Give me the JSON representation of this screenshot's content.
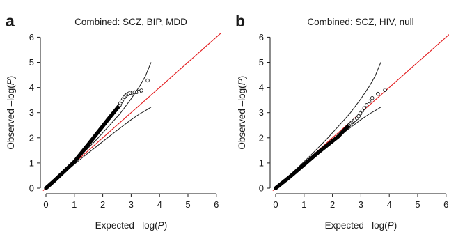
{
  "figure": {
    "panels": [
      {
        "letter": "a",
        "title": "Combined: SCZ, BIP, MDD"
      },
      {
        "letter": "b",
        "title": "Combined: SCZ, HIV, null"
      }
    ]
  },
  "chart_data": [
    {
      "type": "scatter",
      "panel": "a",
      "title": "Combined: SCZ, BIP, MDD",
      "xlabel": "Expected –log(P)",
      "ylabel": "Observed –log(P)",
      "xlim": [
        0,
        6
      ],
      "ylim": [
        0,
        6
      ],
      "xticks": [
        0,
        1,
        2,
        3,
        4,
        5,
        6
      ],
      "yticks": [
        0,
        1,
        2,
        3,
        4,
        5,
        6
      ],
      "colors": {
        "reference_line": "#e31a1c",
        "points": "#000000",
        "envelope": "#1a1a1a"
      },
      "reference_line": {
        "from": [
          0,
          0
        ],
        "to": [
          6.2,
          6.2
        ]
      },
      "confidence_band": {
        "upper": [
          [
            0.3,
            0.31
          ],
          [
            0.8,
            0.84
          ],
          [
            1.3,
            1.38
          ],
          [
            1.8,
            1.95
          ],
          [
            2.2,
            2.45
          ],
          [
            2.6,
            2.95
          ],
          [
            3.0,
            3.55
          ],
          [
            3.3,
            4.05
          ],
          [
            3.5,
            4.45
          ],
          [
            3.7,
            5.0
          ]
        ],
        "lower": [
          [
            0.3,
            0.29
          ],
          [
            0.8,
            0.76
          ],
          [
            1.3,
            1.23
          ],
          [
            1.8,
            1.67
          ],
          [
            2.2,
            2.03
          ],
          [
            2.6,
            2.38
          ],
          [
            3.0,
            2.72
          ],
          [
            3.3,
            2.95
          ],
          [
            3.5,
            3.08
          ],
          [
            3.7,
            3.22
          ]
        ]
      },
      "series_segments": [
        {
          "x0": 0.0,
          "x1": 0.3,
          "y0": 0.0,
          "y1": 0.3,
          "n": 50
        },
        {
          "x0": 0.3,
          "x1": 1.0,
          "y0": 0.3,
          "y1": 1.05,
          "n": 90
        },
        {
          "x0": 1.0,
          "x1": 1.5,
          "y0": 1.05,
          "y1": 1.75,
          "n": 80
        },
        {
          "x0": 1.5,
          "x1": 2.2,
          "y0": 1.75,
          "y1": 2.75,
          "n": 110
        },
        {
          "x0": 2.2,
          "x1": 2.6,
          "y0": 2.75,
          "y1": 3.3,
          "n": 60
        }
      ],
      "scatter_points": [
        [
          2.62,
          3.38
        ],
        [
          2.67,
          3.46
        ],
        [
          2.72,
          3.55
        ],
        [
          2.77,
          3.62
        ],
        [
          2.82,
          3.69
        ],
        [
          2.87,
          3.73
        ],
        [
          2.92,
          3.76
        ],
        [
          2.98,
          3.79
        ],
        [
          3.05,
          3.8
        ],
        [
          3.12,
          3.81
        ],
        [
          3.2,
          3.82
        ],
        [
          3.28,
          3.84
        ],
        [
          3.36,
          3.88
        ],
        [
          3.58,
          4.28
        ]
      ]
    },
    {
      "type": "scatter",
      "panel": "b",
      "title": "Combined: SCZ, HIV, null",
      "xlabel": "Expected –log(P)",
      "ylabel": "Observed –log(P)",
      "xlim": [
        0,
        6
      ],
      "ylim": [
        0,
        6
      ],
      "xticks": [
        0,
        1,
        2,
        3,
        4,
        5,
        6
      ],
      "yticks": [
        0,
        1,
        2,
        3,
        4,
        5,
        6
      ],
      "colors": {
        "reference_line": "#e31a1c",
        "points": "#000000",
        "envelope": "#1a1a1a"
      },
      "reference_line": {
        "from": [
          0,
          0
        ],
        "to": [
          6.2,
          6.2
        ]
      },
      "confidence_band": {
        "upper": [
          [
            0.3,
            0.31
          ],
          [
            0.8,
            0.84
          ],
          [
            1.3,
            1.38
          ],
          [
            1.8,
            1.95
          ],
          [
            2.2,
            2.45
          ],
          [
            2.6,
            2.95
          ],
          [
            3.0,
            3.55
          ],
          [
            3.3,
            4.05
          ],
          [
            3.5,
            4.45
          ],
          [
            3.7,
            5.0
          ]
        ],
        "lower": [
          [
            0.3,
            0.29
          ],
          [
            0.8,
            0.76
          ],
          [
            1.3,
            1.23
          ],
          [
            1.8,
            1.67
          ],
          [
            2.2,
            2.03
          ],
          [
            2.6,
            2.38
          ],
          [
            3.0,
            2.72
          ],
          [
            3.3,
            2.95
          ],
          [
            3.5,
            3.08
          ],
          [
            3.7,
            3.22
          ]
        ]
      },
      "series_segments": [
        {
          "x0": 0.0,
          "x1": 0.5,
          "y0": 0.0,
          "y1": 0.45,
          "n": 60
        },
        {
          "x0": 0.5,
          "x1": 1.5,
          "y0": 0.45,
          "y1": 1.42,
          "n": 110
        },
        {
          "x0": 1.5,
          "x1": 2.2,
          "y0": 1.42,
          "y1": 2.05,
          "n": 80
        },
        {
          "x0": 2.2,
          "x1": 2.6,
          "y0": 2.05,
          "y1": 2.52,
          "n": 50
        }
      ],
      "scatter_points": [
        [
          2.65,
          2.58
        ],
        [
          2.7,
          2.62
        ],
        [
          2.75,
          2.68
        ],
        [
          2.8,
          2.72
        ],
        [
          2.86,
          2.78
        ],
        [
          2.92,
          2.86
        ],
        [
          2.98,
          2.97
        ],
        [
          3.05,
          3.08
        ],
        [
          3.12,
          3.18
        ],
        [
          3.2,
          3.3
        ],
        [
          3.3,
          3.45
        ],
        [
          3.4,
          3.58
        ],
        [
          3.6,
          3.75
        ],
        [
          3.85,
          3.9
        ]
      ]
    }
  ]
}
